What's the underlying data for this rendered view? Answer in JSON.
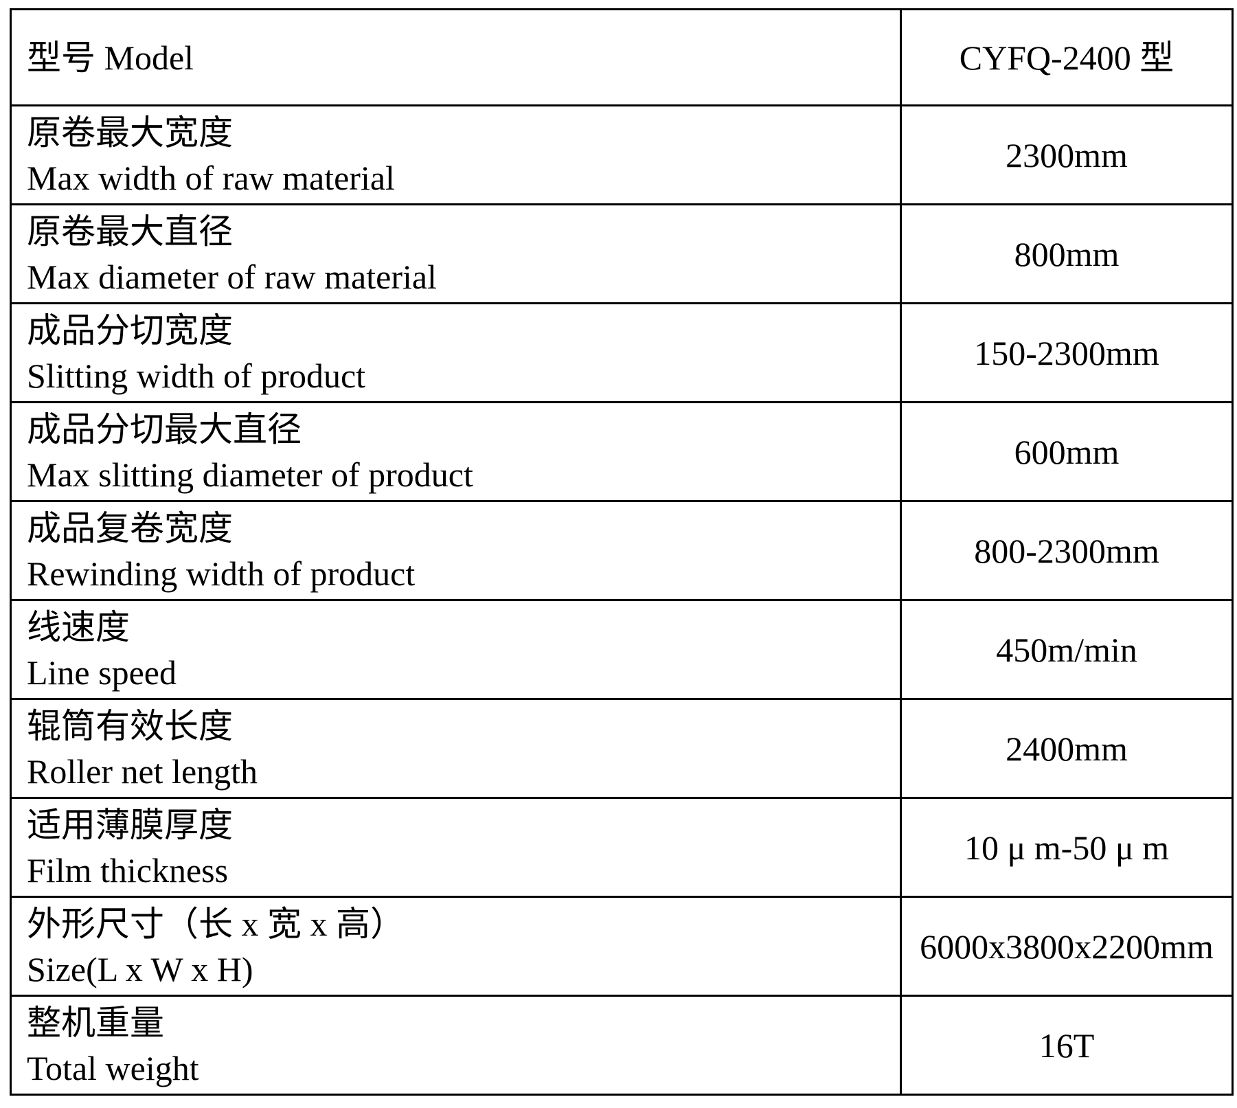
{
  "colors": {
    "background": "#ffffff",
    "border": "#000000",
    "text": "#000000"
  },
  "table": {
    "header": {
      "label": "型号 Model",
      "value": "CYFQ-2400 型"
    },
    "rows": [
      {
        "zh": "原卷最大宽度",
        "en": "Max width of raw material",
        "value": "2300mm"
      },
      {
        "zh": "原卷最大直径",
        "en": "Max diameter of raw material",
        "value": "800mm"
      },
      {
        "zh": "成品分切宽度",
        "en": "Slitting width of product",
        "value": "150-2300mm"
      },
      {
        "zh": "成品分切最大直径",
        "en": "Max slitting diameter of product",
        "value": "600mm"
      },
      {
        "zh": "成品复卷宽度",
        "en": "Rewinding width of product",
        "value": "800-2300mm"
      },
      {
        "zh": "线速度",
        "en": "Line speed",
        "value": "450m/min"
      },
      {
        "zh": "辊筒有效长度",
        "en": "Roller net length",
        "value": "2400mm"
      },
      {
        "zh": "适用薄膜厚度",
        "en": "Film thickness",
        "value": "10 μ m-50 μ m"
      },
      {
        "zh": "外形尺寸（长 x 宽 x 高）",
        "en": "Size(L x W x H)",
        "value": "6000x3800x2200mm"
      },
      {
        "zh": "整机重量",
        "en": "Total weight",
        "value": "16T"
      }
    ]
  }
}
